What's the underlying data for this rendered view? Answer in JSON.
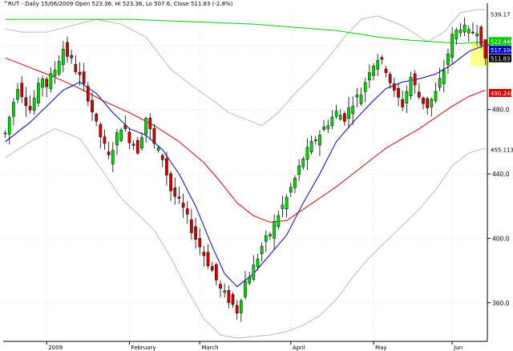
{
  "chart_data": {
    "type": "candlestick",
    "title": "^RUT - Daily 15/06/2009 Open 523.36, Hi 523.36, Lo 507.6, Close 511.83 (-2.8%)",
    "ylim": [
      336,
      542
    ],
    "y_ticks": [
      360.0,
      400.0,
      440.0,
      480.0,
      520.0
    ],
    "y_tick_labels": [
      "360.0",
      "400.0",
      "440.0",
      "480.0",
      "520.0"
    ],
    "x_labels": [
      {
        "index": 10,
        "label": "2009"
      },
      {
        "index": 30,
        "label": "February"
      },
      {
        "index": 47,
        "label": "March"
      },
      {
        "index": 69,
        "label": "April"
      },
      {
        "index": 89,
        "label": "May"
      },
      {
        "index": 108,
        "label": "Jun"
      }
    ],
    "n_bars": 117,
    "colors": {
      "up": "#00dd00",
      "down": "#dd0000",
      "ma_fast": "#0000cc",
      "ma_mid": "#dd0000",
      "ma_long": "#00cc00",
      "band": "#bbbbbb",
      "highlight": "#ffff88"
    },
    "price_labels": [
      {
        "value": 539.17,
        "text": "539.17",
        "bg": "#ffffff",
        "color": "#000000"
      },
      {
        "value": 522.446,
        "text": "522.446",
        "bg": "#00cc00",
        "color": "#ffffff"
      },
      {
        "value": 517.104,
        "text": "517.104",
        "bg": "#0000cc",
        "color": "#ffffff"
      },
      {
        "value": 511.83,
        "text": "511.83",
        "bg": "#000000",
        "color": "#ffffff"
      },
      {
        "value": 490.24,
        "text": "490.240",
        "bg": "#dd0000",
        "color": "#ffffff"
      },
      {
        "value": 455.113,
        "text": "455.113",
        "bg": "#ffffff",
        "color": "#000000"
      }
    ],
    "close_anchors": [
      [
        0,
        465
      ],
      [
        3,
        495
      ],
      [
        6,
        480
      ],
      [
        9,
        500
      ],
      [
        10,
        495
      ],
      [
        12,
        505
      ],
      [
        14,
        518
      ],
      [
        16,
        510
      ],
      [
        18,
        500
      ],
      [
        20,
        488
      ],
      [
        22,
        470
      ],
      [
        25,
        450
      ],
      [
        28,
        470
      ],
      [
        30,
        462
      ],
      [
        32,
        455
      ],
      [
        34,
        475
      ],
      [
        36,
        458
      ],
      [
        38,
        450
      ],
      [
        40,
        430
      ],
      [
        43,
        418
      ],
      [
        46,
        400
      ],
      [
        48,
        390
      ],
      [
        50,
        380
      ],
      [
        52,
        368
      ],
      [
        54,
        362
      ],
      [
        56,
        355
      ],
      [
        58,
        373
      ],
      [
        60,
        382
      ],
      [
        62,
        395
      ],
      [
        64,
        403
      ],
      [
        66,
        415
      ],
      [
        68,
        425
      ],
      [
        70,
        437
      ],
      [
        72,
        450
      ],
      [
        74,
        458
      ],
      [
        76,
        465
      ],
      [
        78,
        472
      ],
      [
        80,
        478
      ],
      [
        82,
        475
      ],
      [
        84,
        485
      ],
      [
        86,
        490
      ],
      [
        88,
        505
      ],
      [
        90,
        512
      ],
      [
        92,
        505
      ],
      [
        94,
        490
      ],
      [
        96,
        483
      ],
      [
        98,
        500
      ],
      [
        100,
        488
      ],
      [
        102,
        482
      ],
      [
        104,
        490
      ],
      [
        106,
        505
      ],
      [
        108,
        525
      ],
      [
        110,
        532
      ],
      [
        112,
        527
      ],
      [
        114,
        530
      ],
      [
        115,
        523
      ],
      [
        116,
        511.83
      ]
    ],
    "ma_fast_anchors": [
      [
        0,
        460
      ],
      [
        6,
        472
      ],
      [
        10,
        482
      ],
      [
        14,
        492
      ],
      [
        18,
        497
      ],
      [
        22,
        490
      ],
      [
        26,
        478
      ],
      [
        30,
        468
      ],
      [
        34,
        464
      ],
      [
        38,
        455
      ],
      [
        42,
        440
      ],
      [
        46,
        420
      ],
      [
        50,
        395
      ],
      [
        53,
        378
      ],
      [
        56,
        370
      ],
      [
        60,
        378
      ],
      [
        64,
        390
      ],
      [
        68,
        402
      ],
      [
        72,
        422
      ],
      [
        76,
        440
      ],
      [
        80,
        460
      ],
      [
        84,
        472
      ],
      [
        88,
        483
      ],
      [
        92,
        493
      ],
      [
        96,
        497
      ],
      [
        100,
        499
      ],
      [
        104,
        502
      ],
      [
        108,
        508
      ],
      [
        112,
        516
      ],
      [
        116,
        520
      ]
    ],
    "ma_mid_anchors": [
      [
        0,
        512
      ],
      [
        6,
        506
      ],
      [
        12,
        500
      ],
      [
        18,
        493
      ],
      [
        24,
        485
      ],
      [
        30,
        478
      ],
      [
        36,
        470
      ],
      [
        42,
        460
      ],
      [
        48,
        447
      ],
      [
        52,
        435
      ],
      [
        56,
        422
      ],
      [
        60,
        414
      ],
      [
        64,
        410
      ],
      [
        68,
        411
      ],
      [
        72,
        418
      ],
      [
        76,
        425
      ],
      [
        80,
        432
      ],
      [
        84,
        440
      ],
      [
        88,
        448
      ],
      [
        92,
        456
      ],
      [
        96,
        462
      ],
      [
        100,
        468
      ],
      [
        104,
        475
      ],
      [
        108,
        482
      ],
      [
        112,
        488
      ],
      [
        116,
        492
      ]
    ],
    "ma_long_anchors": [
      [
        0,
        536
      ],
      [
        30,
        536
      ],
      [
        60,
        533
      ],
      [
        80,
        529
      ],
      [
        90,
        525
      ],
      [
        98,
        523
      ],
      [
        104,
        522
      ],
      [
        110,
        521
      ],
      [
        116,
        522
      ]
    ],
    "band_upper_anchors": [
      [
        0,
        530
      ],
      [
        4,
        528
      ],
      [
        10,
        528
      ],
      [
        16,
        532
      ],
      [
        22,
        536
      ],
      [
        28,
        533
      ],
      [
        34,
        525
      ],
      [
        40,
        505
      ],
      [
        46,
        493
      ],
      [
        50,
        486
      ],
      [
        54,
        478
      ],
      [
        58,
        474
      ],
      [
        62,
        470
      ],
      [
        66,
        478
      ],
      [
        70,
        490
      ],
      [
        74,
        500
      ],
      [
        78,
        512
      ],
      [
        82,
        525
      ],
      [
        86,
        536
      ],
      [
        90,
        538
      ],
      [
        96,
        532
      ],
      [
        102,
        522
      ],
      [
        106,
        528
      ],
      [
        110,
        540
      ],
      [
        114,
        542
      ],
      [
        116,
        542
      ]
    ],
    "band_lower_anchors": [
      [
        0,
        450
      ],
      [
        6,
        460
      ],
      [
        12,
        468
      ],
      [
        18,
        462
      ],
      [
        24,
        440
      ],
      [
        28,
        425
      ],
      [
        32,
        415
      ],
      [
        36,
        405
      ],
      [
        40,
        388
      ],
      [
        44,
        368
      ],
      [
        48,
        350
      ],
      [
        52,
        340
      ],
      [
        56,
        338
      ],
      [
        60,
        339
      ],
      [
        64,
        340
      ],
      [
        68,
        342
      ],
      [
        72,
        346
      ],
      [
        76,
        352
      ],
      [
        80,
        362
      ],
      [
        84,
        376
      ],
      [
        88,
        388
      ],
      [
        92,
        398
      ],
      [
        96,
        408
      ],
      [
        100,
        418
      ],
      [
        104,
        430
      ],
      [
        108,
        445
      ],
      [
        112,
        453
      ],
      [
        116,
        456
      ]
    ]
  }
}
